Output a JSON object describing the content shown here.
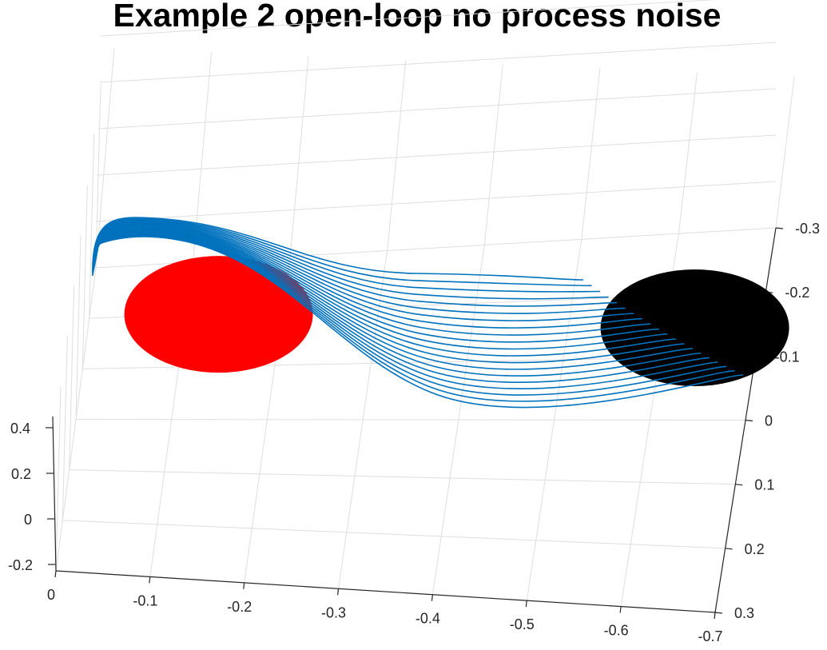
{
  "chart_data": {
    "type": "line3d",
    "title": "Example 2 open-loop no process noise",
    "xlabel": "",
    "ylabel": "",
    "zlabel": "",
    "xlim": [
      0,
      -0.7
    ],
    "ylim": [
      0.3,
      -0.3
    ],
    "zlim": [
      -0.2,
      0.4
    ],
    "x_ticks": [
      "0",
      "-0.1",
      "-0.2",
      "-0.3",
      "-0.4",
      "-0.5",
      "-0.6",
      "-0.7"
    ],
    "y_ticks": [
      "-0.3",
      "-0.2",
      "-0.1",
      "0",
      "0.1",
      "0.2",
      "0.3"
    ],
    "z_ticks": [
      "0.4",
      "0.2",
      "0",
      "-0.2"
    ],
    "grid": true,
    "start_region": {
      "shape": "disc",
      "color": "#ff0000",
      "center": [
        -0.134,
        -0.198
      ],
      "radius": 0.12
    },
    "target_region": {
      "shape": "disc",
      "color": "#000000",
      "center": [
        -0.632,
        -0.147
      ],
      "radius": 0.12
    },
    "series": [
      {
        "color": "#0072bd",
        "trajectory_count": 20,
        "description_points": [
          [
            -0.02,
            -0.25,
            0.4
          ],
          [
            -0.55,
            -0.15,
            0.0
          ]
        ]
      }
    ]
  },
  "colors": {
    "trajectory": "#0072bd",
    "start_disc": "#ff0000",
    "target_disc": "#000000",
    "grid": "#dedede",
    "axis": "#262626"
  }
}
